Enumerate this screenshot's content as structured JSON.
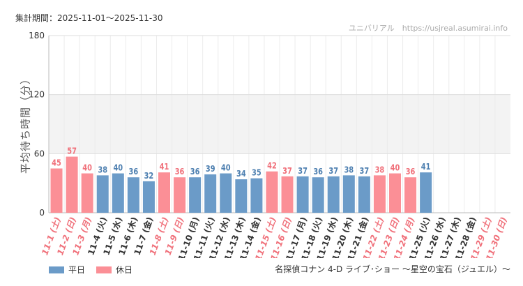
{
  "header": {
    "period": "集計期間：2025-11-01～2025-11-30",
    "credit": "ユニバリアル　https://usjreal.asumirai.info"
  },
  "legend": {
    "weekday_label": "平日",
    "holiday_label": "休日",
    "weekday_color": "#6b9bc8",
    "holiday_color": "#fb8f96"
  },
  "footer": {
    "attraction": "名探偵コナン 4-D ライブ･ショー ～星空の宝石（ジュエル）～"
  },
  "chart_data": {
    "type": "bar",
    "title": "",
    "xlabel": "",
    "ylabel": "平均待ち時間（分）",
    "ylim": [
      0,
      180
    ],
    "yticks": [
      0,
      60,
      120,
      180
    ],
    "band": [
      60,
      120
    ],
    "categories": [
      "11-1 (土)",
      "11-2 (日)",
      "11-3 (月)",
      "11-4 (火)",
      "11-5 (水)",
      "11-6 (木)",
      "11-7 (金)",
      "11-8 (土)",
      "11-9 (日)",
      "11-10 (月)",
      "11-11 (火)",
      "11-12 (水)",
      "11-13 (木)",
      "11-14 (金)",
      "11-15 (土)",
      "11-16 (日)",
      "11-17 (月)",
      "11-18 (火)",
      "11-19 (水)",
      "11-20 (木)",
      "11-21 (金)",
      "11-22 (土)",
      "11-23 (日)",
      "11-24 (月)",
      "11-25 (火)",
      "11-26 (水)",
      "11-27 (木)",
      "11-28 (金)",
      "11-29 (土)",
      "11-30 (日)"
    ],
    "values": [
      45,
      57,
      40,
      38,
      40,
      36,
      32,
      41,
      36,
      36,
      39,
      40,
      34,
      35,
      42,
      37,
      37,
      36,
      37,
      38,
      37,
      38,
      40,
      36,
      41,
      null,
      null,
      null,
      null,
      null
    ],
    "day_type": [
      "holiday",
      "holiday",
      "holiday",
      "weekday",
      "weekday",
      "weekday",
      "weekday",
      "holiday",
      "holiday",
      "weekday",
      "weekday",
      "weekday",
      "weekday",
      "weekday",
      "holiday",
      "holiday",
      "weekday",
      "weekday",
      "weekday",
      "weekday",
      "weekday",
      "holiday",
      "holiday",
      "holiday",
      "weekday",
      "weekday",
      "weekday",
      "weekday",
      "holiday",
      "holiday"
    ]
  }
}
